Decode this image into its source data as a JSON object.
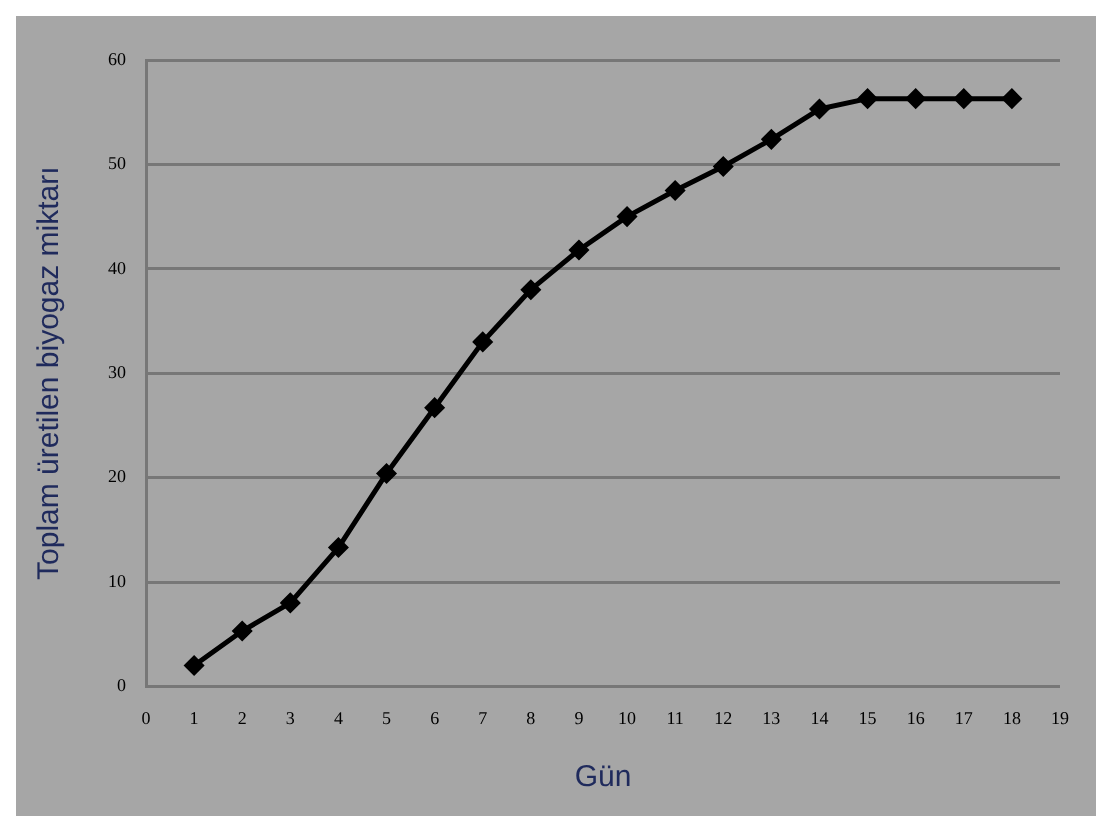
{
  "chart_data": {
    "type": "line",
    "xlabel": "Gün",
    "ylabel": "Toplam üretilen biyogaz miktarı",
    "x": [
      1,
      2,
      3,
      4,
      5,
      6,
      7,
      8,
      9,
      10,
      11,
      12,
      13,
      14,
      15,
      16,
      17,
      18
    ],
    "series": [
      {
        "color": "#000000",
        "values": [
          2,
          5.3,
          8,
          13.3,
          20.4,
          26.7,
          33,
          38,
          41.8,
          45,
          47.5,
          49.8,
          52.4,
          55.3,
          56.3,
          56.3,
          56.3,
          56.3
        ]
      }
    ],
    "xlim": [
      0,
      19
    ],
    "xticks": [
      0,
      1,
      2,
      3,
      4,
      5,
      6,
      7,
      8,
      9,
      10,
      11,
      12,
      13,
      14,
      15,
      16,
      17,
      18,
      19
    ],
    "ylim": [
      0,
      60
    ],
    "yticks": [
      0,
      10,
      20,
      30,
      40,
      50,
      60
    ],
    "grid": "y",
    "legend": false,
    "marker": "diamond",
    "line_style": "solid"
  }
}
